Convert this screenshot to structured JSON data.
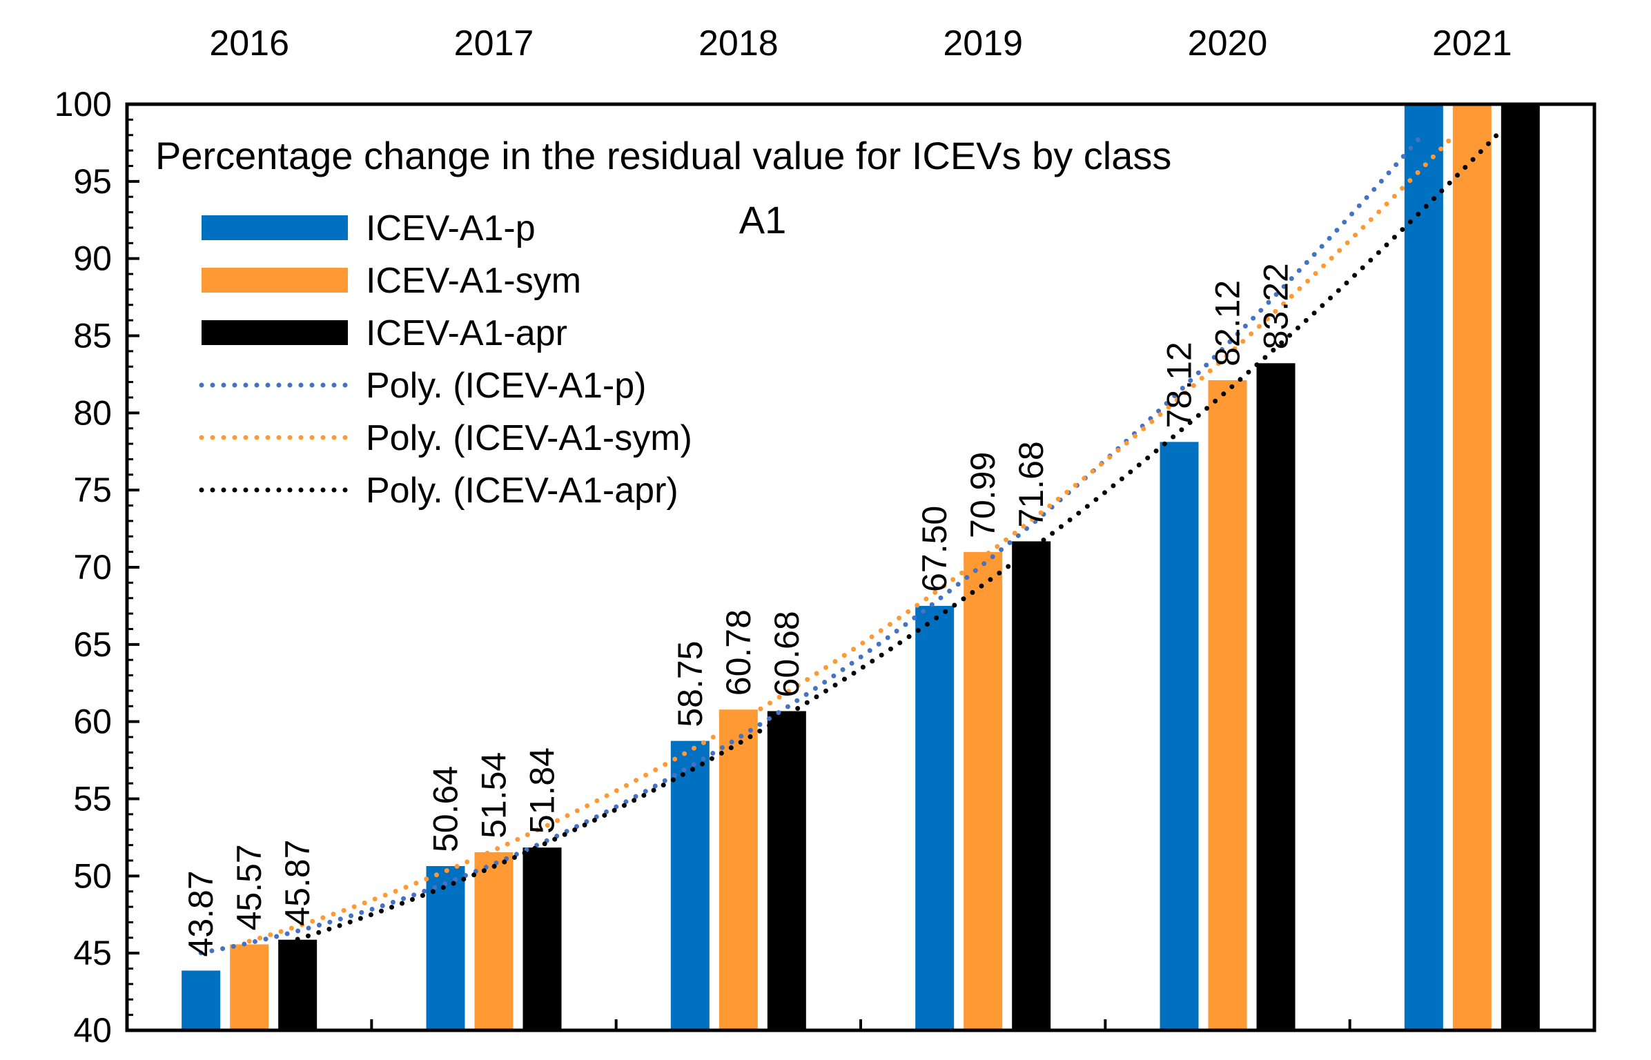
{
  "chart_data": {
    "type": "bar",
    "title": "Percentage change in the residual value for ICEVs by class",
    "subtitle": "A1",
    "categories": [
      "2016",
      "2017",
      "2018",
      "2019",
      "2020",
      "2021"
    ],
    "ylim": [
      40,
      100
    ],
    "ytick_step": 5,
    "yticks": [
      "40",
      "45",
      "50",
      "55",
      "60",
      "65",
      "70",
      "75",
      "80",
      "85",
      "90",
      "95",
      "100"
    ],
    "xlabel": "",
    "ylabel": "",
    "legend_position": "top-left",
    "series": [
      {
        "name": "ICEV-A1-p",
        "color": "#0070C0",
        "values": [
          43.87,
          50.64,
          58.75,
          67.5,
          78.12,
          100
        ],
        "labels": [
          "43.87",
          "50.64",
          "58.75",
          "67.50",
          "78.12",
          ""
        ]
      },
      {
        "name": "ICEV-A1-sym",
        "color": "#FF9933",
        "values": [
          45.57,
          51.54,
          60.78,
          70.99,
          82.12,
          100
        ],
        "labels": [
          "45.57",
          "51.54",
          "60.78",
          "70.99",
          "82.12",
          ""
        ]
      },
      {
        "name": "ICEV-A1-apr",
        "color": "#000000",
        "values": [
          45.87,
          51.84,
          60.68,
          71.68,
          83.22,
          100
        ],
        "labels": [
          "45.87",
          "51.84",
          "60.68",
          "71.68",
          "83.22",
          ""
        ]
      }
    ],
    "trendlines": [
      {
        "name": "Poly. (ICEV-A1-p)",
        "color": "#4472C4",
        "of_series": 0
      },
      {
        "name": "Poly. (ICEV-A1-sym)",
        "color": "#FF9933",
        "of_series": 1
      },
      {
        "name": "Poly. (ICEV-A1-apr)",
        "color": "#000000",
        "of_series": 2
      }
    ]
  }
}
